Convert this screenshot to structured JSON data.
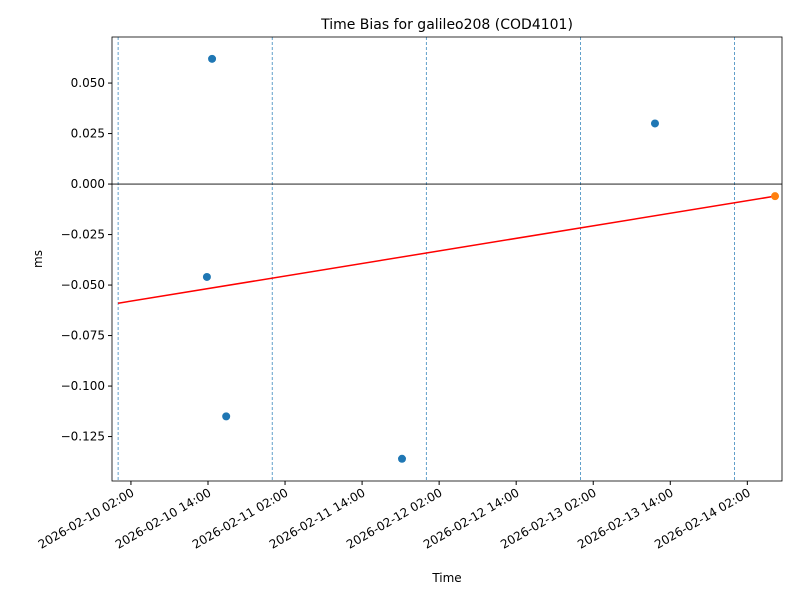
{
  "chart_data": {
    "type": "scatter",
    "title": "Time Bias for galileo208 (COD4101)",
    "xlabel": "Time",
    "ylabel": "ms",
    "xlim": [
      "2026-02-09 23:03",
      "2026-02-14 07:24"
    ],
    "ylim": [
      -0.147,
      0.0728
    ],
    "xticks": [
      "2026-02-10 02:00",
      "2026-02-10 14:00",
      "2026-02-11 02:00",
      "2026-02-11 14:00",
      "2026-02-12 02:00",
      "2026-02-12 14:00",
      "2026-02-13 02:00",
      "2026-02-13 14:00",
      "2026-02-14 02:00"
    ],
    "yticks": [
      {
        "value": 0.05,
        "label": "0.050"
      },
      {
        "value": 0.025,
        "label": "0.025"
      },
      {
        "value": 0,
        "label": "0.000"
      },
      {
        "value": -0.025,
        "label": "−0.025"
      },
      {
        "value": -0.05,
        "label": "−0.050"
      },
      {
        "value": -0.075,
        "label": "−0.075"
      },
      {
        "value": -0.1,
        "label": "−0.100"
      },
      {
        "value": -0.125,
        "label": "−0.125"
      }
    ],
    "hline": {
      "value": 0,
      "color": "#000000"
    },
    "vlines": {
      "color": "#1f77b4",
      "x": [
        "2026-02-10 00:00",
        "2026-02-11 00:00",
        "2026-02-12 00:00",
        "2026-02-13 00:00",
        "2026-02-14 00:00"
      ]
    },
    "series": [
      {
        "kind": "points",
        "color": "#1f77b4",
        "x": [
          "2026-02-10 14:38",
          "2026-02-10 13:50",
          "2026-02-10 16:50",
          "2026-02-11 20:13",
          "2026-02-13 11:37"
        ],
        "values": [
          0.062,
          -0.046,
          -0.115,
          -0.136,
          0.03
        ]
      },
      {
        "kind": "points",
        "color": "#ff7f0e",
        "x": [
          "2026-02-14 06:19"
        ],
        "values": [
          -0.006
        ]
      },
      {
        "kind": "line",
        "color": "#ff0000",
        "x": [
          "2026-02-10 00:00",
          "2026-02-14 06:19"
        ],
        "values": [
          -0.059,
          -0.006
        ]
      }
    ]
  }
}
